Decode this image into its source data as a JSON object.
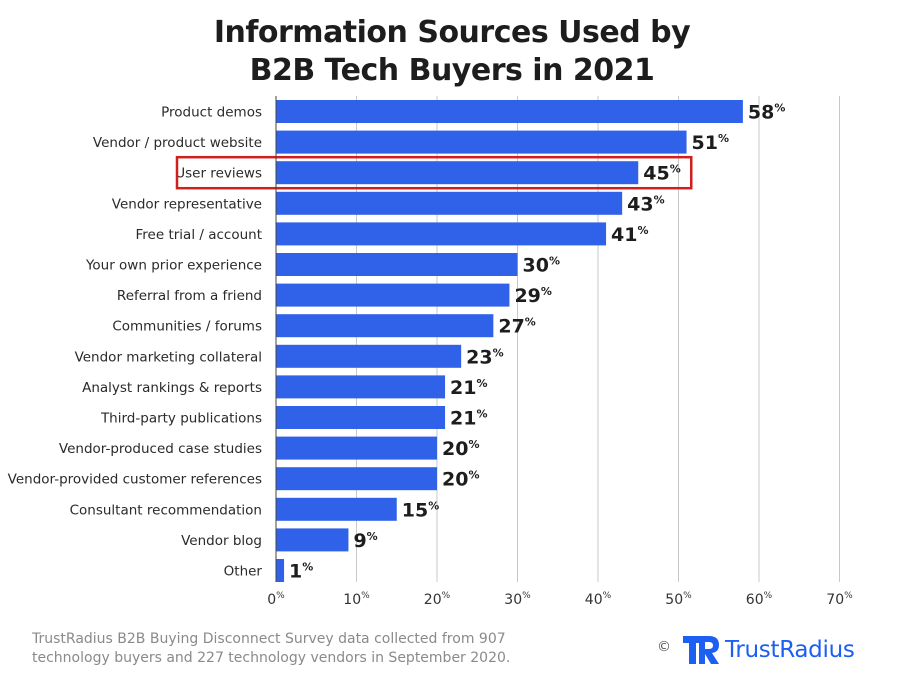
{
  "chart_data": {
    "type": "bar",
    "orientation": "horizontal",
    "title_lines": [
      "Information Sources Used by",
      "B2B Tech Buyers in 2021"
    ],
    "categories": [
      "Product demos",
      "Vendor / product website",
      "User reviews",
      "Vendor representative",
      "Free trial / account",
      "Your own prior experience",
      "Referral from a friend",
      "Communities / forums",
      "Vendor marketing collateral",
      "Analyst rankings & reports",
      "Third-party publications",
      "Vendor-produced case studies",
      "Vendor-provided customer references",
      "Consultant recommendation",
      "Vendor blog",
      "Other"
    ],
    "values": [
      58,
      51,
      45,
      43,
      41,
      30,
      29,
      27,
      23,
      21,
      21,
      20,
      20,
      15,
      9,
      1
    ],
    "value_suffix": "%",
    "highlighted_category": "User reviews",
    "xlim": [
      0,
      70
    ],
    "xticks": [
      0,
      10,
      20,
      30,
      40,
      50,
      60,
      70
    ],
    "tick_suffix": "%",
    "grid": "vertical",
    "bar_color": "#2f62e8",
    "highlight_color": "#d0201e",
    "gridline_color": "#c8c8c8"
  },
  "footer": {
    "line1": "TrustRadius B2B Buying Disconnect Survey data collected from 907",
    "line2": "technology buyers and 227 technology vendors in September 2020."
  },
  "brand": {
    "copyright": "©",
    "name": "TrustRadius",
    "logo_icon": "trustradius-logo-icon",
    "color": "#1d5ff0"
  }
}
